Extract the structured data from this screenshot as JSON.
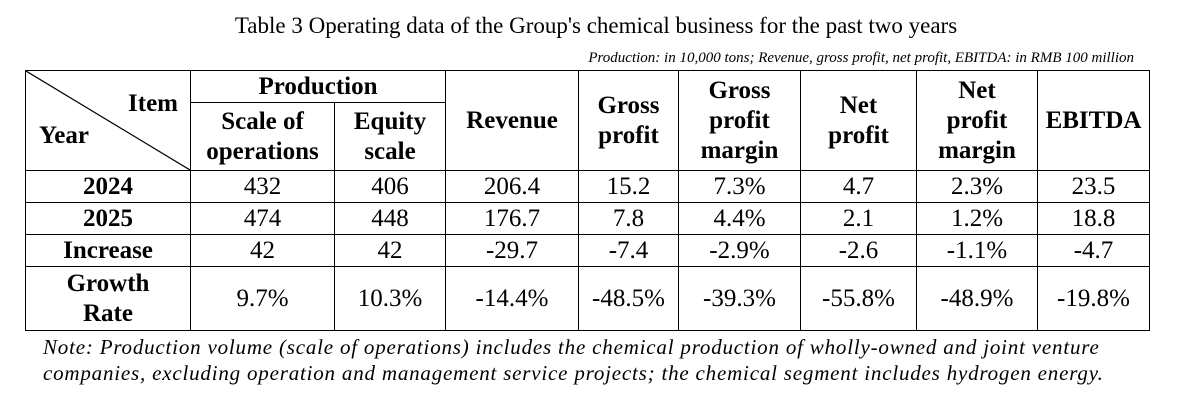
{
  "title": "Table 3 Operating data of the Group's chemical business for the past two years",
  "units": "Production: in 10,000 tons; Revenue, gross profit, net profit, EBITDA: in RMB 100 million",
  "corner": {
    "item": "Item",
    "year": "Year"
  },
  "headers": {
    "production": "Production",
    "scale": "Scale of operations",
    "equity": "Equity scale",
    "revenue": "Revenue",
    "gross_profit": "Gross profit",
    "gross_margin": "Gross profit margin",
    "net_profit": "Net profit",
    "net_margin": "Net profit margin",
    "ebitda": "EBITDA"
  },
  "rows": [
    {
      "label": "2024",
      "values": [
        "432",
        "406",
        "206.4",
        "15.2",
        "7.3%",
        "4.7",
        "2.3%",
        "23.5"
      ]
    },
    {
      "label": "2025",
      "values": [
        "474",
        "448",
        "176.7",
        "7.8",
        "4.4%",
        "2.1",
        "1.2%",
        "18.8"
      ]
    },
    {
      "label": "Increase",
      "values": [
        "42",
        "42",
        "-29.7",
        "-7.4",
        "-2.9%",
        "-2.6",
        "-1.1%",
        "-4.7"
      ]
    },
    {
      "label": "Growth Rate",
      "values": [
        "9.7%",
        "10.3%",
        "-14.4%",
        "-48.5%",
        "-39.3%",
        "-55.8%",
        "-48.9%",
        "-19.8%"
      ]
    }
  ],
  "note": "Note: Production volume (scale of operations) includes the chemical production of wholly-owned and joint venture companies, excluding operation and management service projects; the chemical segment includes hydrogen energy."
}
